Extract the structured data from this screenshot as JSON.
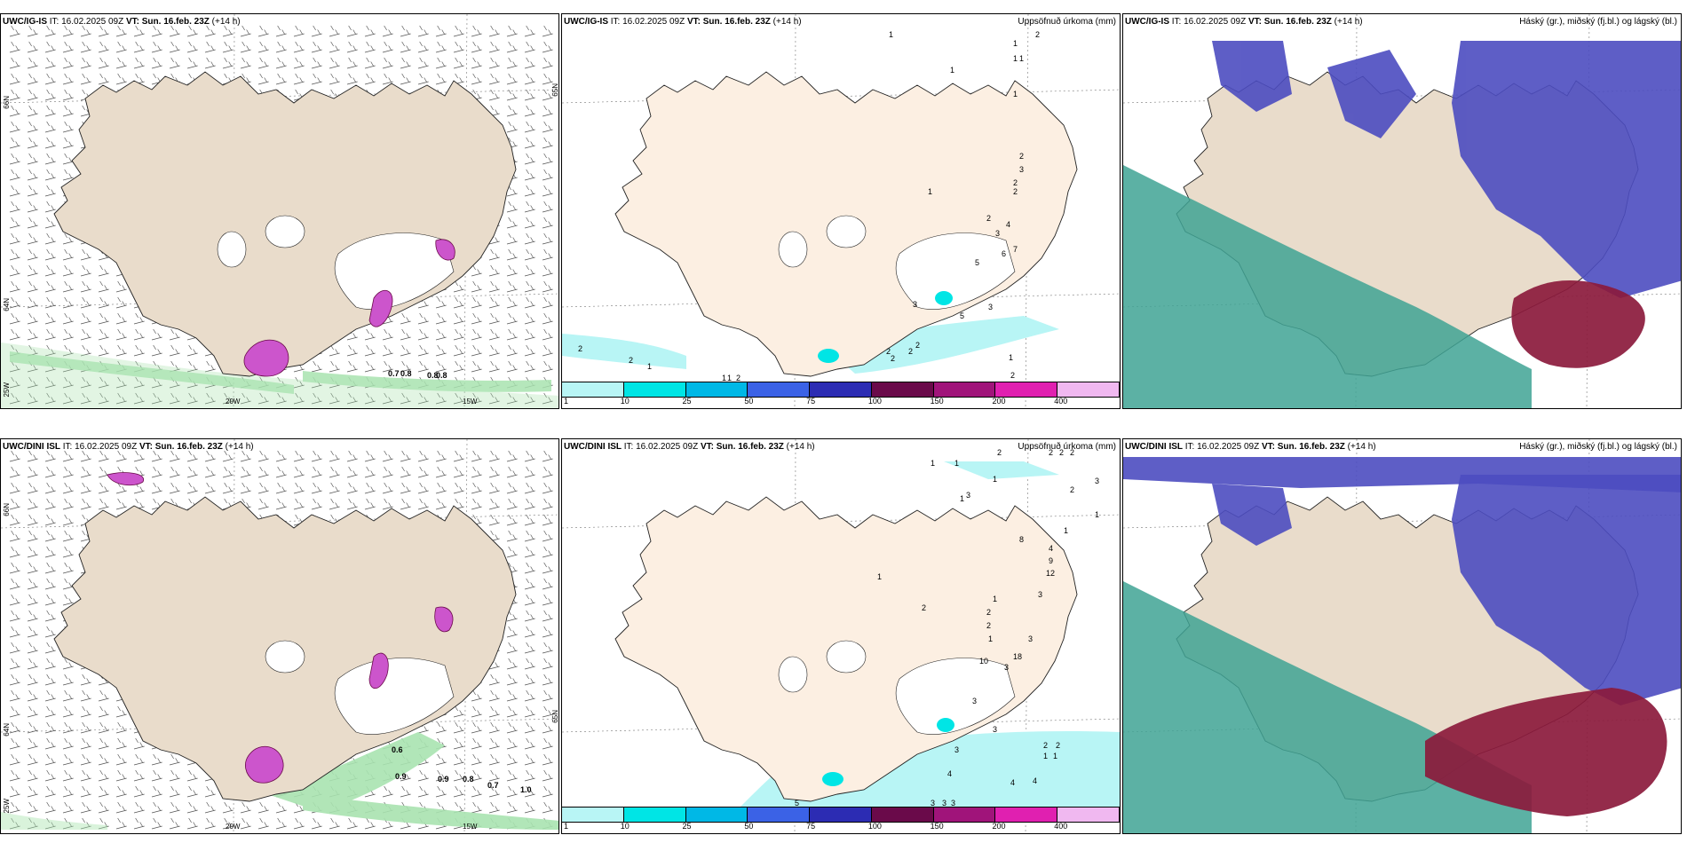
{
  "colors": {
    "land": "#e9dccb",
    "land_light": "#fcefe2",
    "precip_light": "#b8f5f5",
    "green": "#a9e3b0",
    "magenta": "#cc55cc",
    "blue_cloud": "#4c4cc0",
    "red_cloud": "#8b1a3c",
    "teal_cloud": "#3fa394"
  },
  "panels": [
    {
      "source": "UWC/IG-IS",
      "it_label": "IT: 16.02.2025 09Z",
      "vt_label": "VT:",
      "vt": "Sun. 16.feb. 23Z",
      "lead": "(+14 h)",
      "axis_labels": [
        "66N",
        "64N",
        "25W",
        "20W",
        "15W",
        "65N"
      ],
      "contour_labels": [
        "0.7",
        "0.8",
        "0.8",
        "0.8"
      ]
    },
    {
      "source": "UWC/IG-IS",
      "it_label": "IT: 16.02.2025 09Z",
      "vt_label": "VT:",
      "vt": "Sun. 16.feb. 23Z",
      "lead": "(+14 h)",
      "title_right": "Uppsöfnuð úrkoma (mm)",
      "precip_values": [
        "1",
        "2",
        "1",
        "1",
        "1",
        "1",
        "1",
        "2",
        "3",
        "2",
        "2",
        "1",
        "2",
        "4",
        "3",
        "7",
        "6",
        "5",
        "5",
        "3",
        "3",
        "2",
        "2",
        "2",
        "1",
        "2",
        "1",
        "2",
        "2",
        "2",
        "1",
        "1",
        "2"
      ]
    },
    {
      "source": "UWC/IG-IS",
      "it_label": "IT: 16.02.2025 09Z",
      "vt_label": "VT:",
      "vt": "Sun. 16.feb. 23Z",
      "lead": "(+14 h)",
      "title_right": "Háský (gr.), miðský (fj.bl.) og lágský (bl.)"
    },
    {
      "source": "UWC/DINI ISL",
      "it_label": "IT: 16.02.2025 09Z",
      "vt_label": "VT:",
      "vt": "Sun. 16.feb. 23Z",
      "lead": "(+14 h)",
      "axis_labels": [
        "66N",
        "64N",
        "25W",
        "20W",
        "15W",
        "65N"
      ],
      "contour_labels": [
        "0.6",
        "0.9",
        "0.9",
        "0.8",
        "0.7",
        "1.0"
      ]
    },
    {
      "source": "UWC/DINI ISL",
      "it_label": "IT: 16.02.2025 09Z",
      "vt_label": "VT:",
      "vt": "Sun. 16.feb. 23Z",
      "lead": "(+14 h)",
      "title_right": "Uppsöfnuð úrkoma (mm)",
      "precip_values": [
        "1",
        "1",
        "2",
        "2",
        "2",
        "2",
        "3",
        "1",
        "1",
        "2",
        "1",
        "3",
        "1",
        "8",
        "4",
        "9",
        "12",
        "3",
        "1",
        "1",
        "2",
        "2",
        "2",
        "1",
        "3",
        "18",
        "10",
        "3",
        "3",
        "3",
        "3",
        "4",
        "4",
        "4",
        "2",
        "2",
        "1",
        "1",
        "3",
        "3",
        "3",
        "5"
      ]
    },
    {
      "source": "UWC/DINI ISL",
      "it_label": "IT: 16.02.2025 09Z",
      "vt_label": "VT:",
      "vt": "Sun. 16.feb. 23Z",
      "lead": "(+14 h)",
      "title_right": "Háský (gr.), miðský (fj.bl.) og lágský (bl.)"
    }
  ],
  "legend": {
    "colors": [
      "#b8f5f5",
      "#00e5e5",
      "#00b8e6",
      "#3b62e6",
      "#2c2cb3",
      "#6a0a4a",
      "#a0147a",
      "#e020b0",
      "#f0b8f0"
    ],
    "ticks": [
      "1",
      "10",
      "25",
      "50",
      "75",
      "100",
      "150",
      "200",
      "400"
    ]
  }
}
